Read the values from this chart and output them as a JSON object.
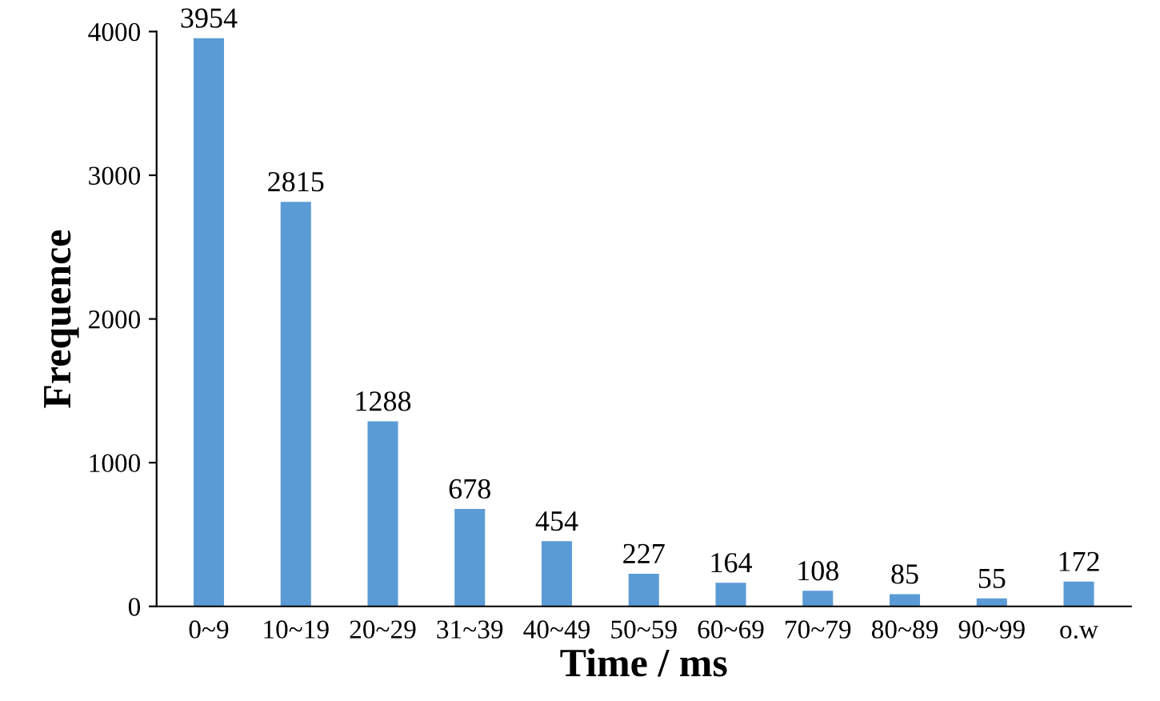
{
  "chart_data": {
    "type": "bar",
    "xlabel": "Time / ms",
    "ylabel": "Frequence",
    "categories": [
      "0~9",
      "10~19",
      "20~29",
      "31~39",
      "40~49",
      "50~59",
      "60~69",
      "70~79",
      "80~89",
      "90~99",
      "o.w"
    ],
    "values": [
      3954,
      2815,
      1288,
      678,
      454,
      227,
      164,
      108,
      85,
      55,
      172
    ],
    "color": "#5b9bd5",
    "ylim": [
      0,
      4000
    ],
    "yticks": [
      0,
      1000,
      2000,
      3000,
      4000
    ],
    "grid": false,
    "data_labels": true
  }
}
